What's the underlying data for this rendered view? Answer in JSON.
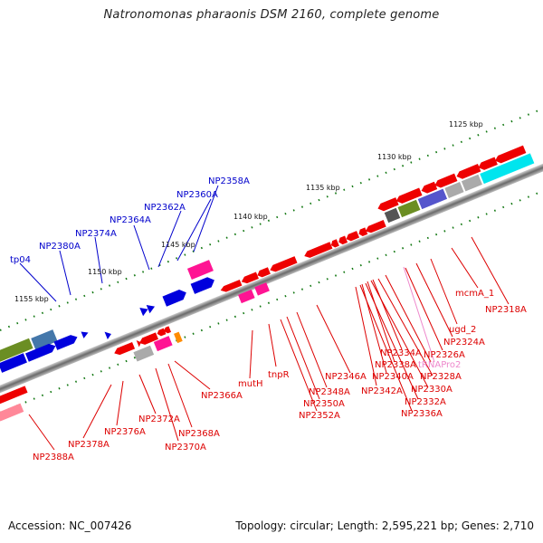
{
  "header": {
    "title": "Natronomonas pharaonis DSM 2160, complete genome"
  },
  "footer": {
    "accession": "Accession: NC_007426",
    "summary": "Topology: circular; Length: 2,595,221 bp; Genes: 2,710"
  },
  "colors": {
    "forward_label": "#0000cc",
    "reverse_label": "#dd0000",
    "rna_label": "#ee88cc",
    "backbone": "#888888",
    "tick": "#117711"
  },
  "scale_labels": [
    "1125 kbp",
    "1130 kbp",
    "1135 kbp",
    "1140 kbp",
    "1145 kbp",
    "1150 kbp",
    "1155 kbp"
  ],
  "forward_genes": [
    "NP2358A",
    "NP2360A",
    "NP2362A",
    "NP2364A",
    "NP2374A",
    "NP2380A",
    "tp04"
  ],
  "reverse_genes": [
    "mcmA_1",
    "NP2318A",
    "ugd_2",
    "NP2324A",
    "NP2326A",
    "tRNAPro2",
    "NP2328A",
    "NP2330A",
    "NP2332A",
    "NP2336A",
    "NP2334A",
    "NP2338A",
    "NP2340A",
    "NP2342A",
    "NP2346A",
    "NP2348A",
    "NP2350A",
    "NP2352A",
    "tnpR",
    "mutH",
    "NP2366A",
    "NP2368A",
    "NP2370A",
    "NP2372A",
    "NP2376A",
    "NP2378A",
    "NP2388A"
  ]
}
